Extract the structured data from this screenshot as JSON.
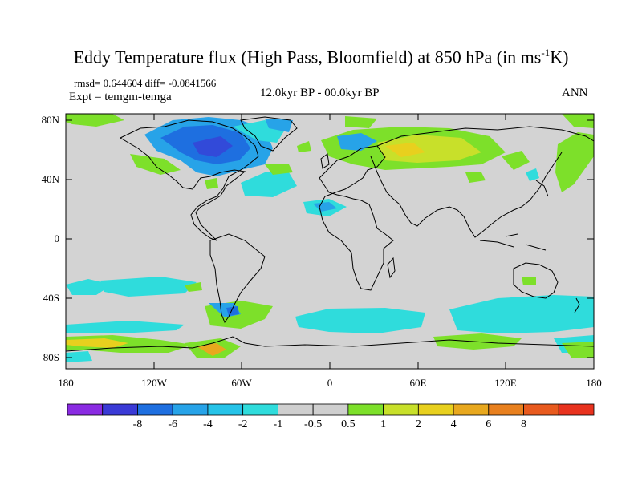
{
  "plot": {
    "title_main": "Eddy Temperature flux (High Pass, Bloomfield) at 850 hPa (in ms",
    "title_exp": "-1",
    "title_tail": "K)",
    "stats": "rmsd= 0.644604 diff= -0.0841566",
    "expt": "Expt = temgm-temga",
    "period": "12.0kyr BP - 00.0kyr BP",
    "season": "ANN"
  },
  "axes": {
    "lat_labels": [
      "80N",
      "40N",
      "0",
      "40S",
      "80S"
    ],
    "lon_labels": [
      "180",
      "120W",
      "60W",
      "0",
      "60E",
      "120E",
      "180"
    ]
  },
  "colorbar": {
    "colors": [
      "#8a2be2",
      "#3a3ad6",
      "#1e6fe0",
      "#27a3e8",
      "#26c3e8",
      "#2fdcdc",
      "#cfcfcf",
      "#cfcfcf",
      "#7de02a",
      "#c8e02a",
      "#e8d01e",
      "#e8a81e",
      "#e8801e",
      "#e85a1e",
      "#e8321e"
    ],
    "labels": [
      "-8",
      "-6",
      "-4",
      "-2",
      "-1",
      "-0.5",
      "0.5",
      "1",
      "2",
      "4",
      "6",
      "8"
    ]
  },
  "colors": {
    "land_bg": "#d3d3d3",
    "coast": "#000000",
    "neg_strong": "#1e6fe0",
    "neg_mid": "#27a3e8",
    "neg_light": "#2fdcdc",
    "pos_light": "#7de02a",
    "pos_mid": "#c8e02a",
    "pos_strong": "#e8a81e"
  }
}
